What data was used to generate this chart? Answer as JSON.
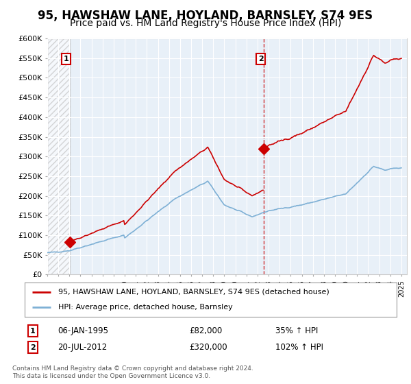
{
  "title": "95, HAWSHAW LANE, HOYLAND, BARNSLEY, S74 9ES",
  "subtitle": "Price paid vs. HM Land Registry's House Price Index (HPI)",
  "ylim": [
    0,
    600000
  ],
  "yticks": [
    0,
    50000,
    100000,
    150000,
    200000,
    250000,
    300000,
    350000,
    400000,
    450000,
    500000,
    550000,
    600000
  ],
  "ytick_labels": [
    "£0",
    "£50K",
    "£100K",
    "£150K",
    "£200K",
    "£250K",
    "£300K",
    "£350K",
    "£400K",
    "£450K",
    "£500K",
    "£550K",
    "£600K"
  ],
  "xlim_start": 1993.0,
  "xlim_end": 2025.5,
  "sale1_date": 1995.04,
  "sale1_price": 82000,
  "sale1_label": "1",
  "sale2_date": 2012.55,
  "sale2_price": 320000,
  "sale2_label": "2",
  "hpi_line_color": "#7eb0d5",
  "price_line_color": "#cc0000",
  "sale_marker_color": "#cc0000",
  "bg_color": "#e8f0f8",
  "grid_color": "#ffffff",
  "legend1_label": "95, HAWSHAW LANE, HOYLAND, BARNSLEY, S74 9ES (detached house)",
  "legend2_label": "HPI: Average price, detached house, Barnsley",
  "annotation1": [
    "1",
    "06-JAN-1995",
    "£82,000",
    "35% ↑ HPI"
  ],
  "annotation2": [
    "2",
    "20-JUL-2012",
    "£320,000",
    "102% ↑ HPI"
  ],
  "footer": "Contains HM Land Registry data © Crown copyright and database right 2024.\nThis data is licensed under the Open Government Licence v3.0.",
  "title_fontsize": 12,
  "subtitle_fontsize": 10
}
